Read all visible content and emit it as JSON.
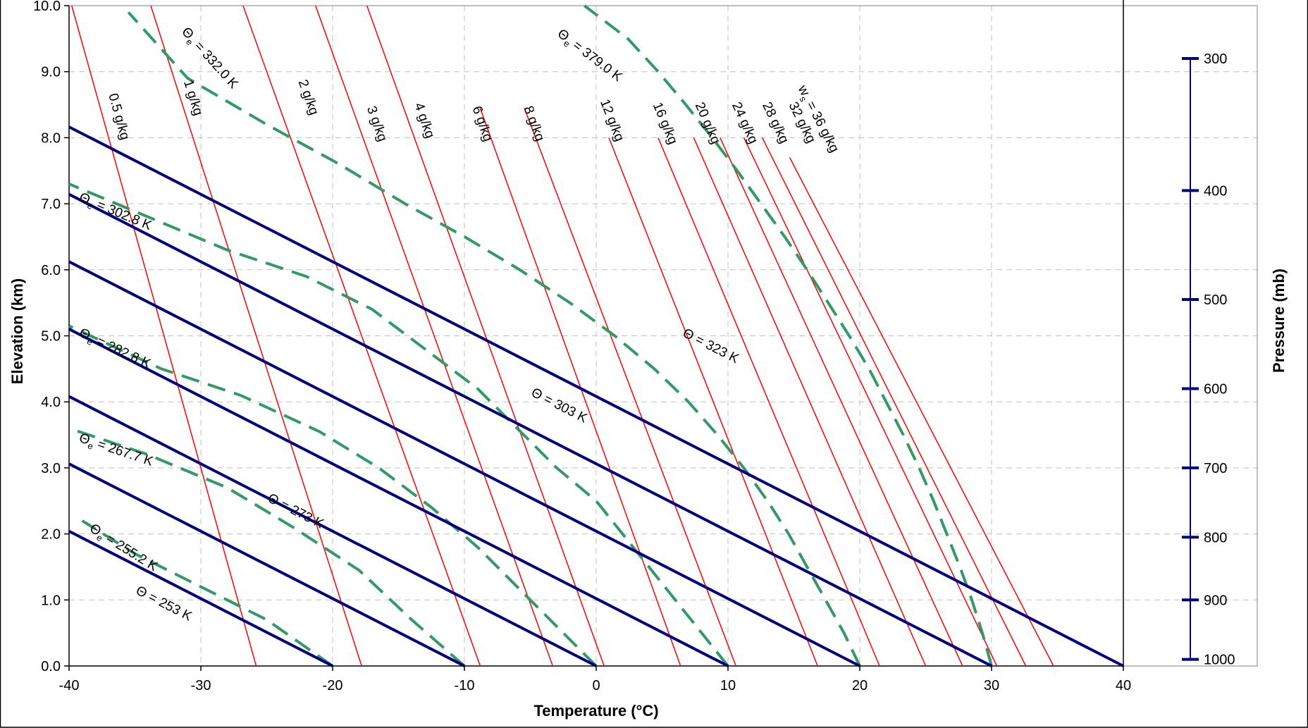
{
  "chart_data": {
    "type": "line",
    "xlabel": "Temperature (°C)",
    "ylabel": "Elevation (km)",
    "y2label": "Pressure (mb)",
    "xlim": [
      -40,
      40
    ],
    "ylim": [
      0,
      10
    ],
    "x_ticks": [
      "-40",
      "-30",
      "-20",
      "-10",
      "0",
      "10",
      "20",
      "30",
      "40"
    ],
    "y_ticks": [
      "0.0",
      "1.0",
      "2.0",
      "3.0",
      "4.0",
      "5.0",
      "6.0",
      "7.0",
      "8.0",
      "9.0",
      "10.0"
    ],
    "grid": true,
    "colors": {
      "dry_adiabat": "#00007f",
      "moist_adiabat": "#339966",
      "mixing_ratio": "#ff0000",
      "grid": "#c0c0c0"
    },
    "dry_adiabats": {
      "lapse_rate_c_per_km": 9.8,
      "surface_temperatures_c": [
        -20,
        -10,
        0,
        10,
        20,
        30,
        40
      ],
      "labels": [
        {
          "theta": "253",
          "text": "Θ = 253 K",
          "x": -35,
          "y": 1.1
        },
        {
          "theta": "273",
          "text": "Θ = 273 K",
          "x": -25,
          "y": 2.5
        },
        {
          "theta": "303",
          "text": "Θ = 303 K",
          "x": -5,
          "y": 4.1
        },
        {
          "theta": "323",
          "text": "Θ = 323 K",
          "x": 6.5,
          "y": 5.0
        }
      ]
    },
    "moist_adiabats": [
      {
        "label": "= 255.2 K",
        "label_x": -38.5,
        "label_y": 2.05,
        "points": [
          [
            -20,
            0
          ],
          [
            -25,
            0.7
          ],
          [
            -30,
            1.2
          ],
          [
            -35,
            1.7
          ],
          [
            -39,
            2.2
          ]
        ]
      },
      {
        "label": "= 267.7 K",
        "label_x": -39.3,
        "label_y": 3.4,
        "points": [
          [
            -10,
            0
          ],
          [
            -14,
            0.7
          ],
          [
            -18,
            1.45
          ],
          [
            -23,
            2.1
          ],
          [
            -28,
            2.7
          ],
          [
            -34,
            3.2
          ],
          [
            -40,
            3.6
          ]
        ]
      },
      {
        "label": "= 282.8 K",
        "label_x": -39.3,
        "label_y": 5.0,
        "points": [
          [
            0,
            0
          ],
          [
            -3,
            0.6
          ],
          [
            -6,
            1.2
          ],
          [
            -9,
            1.8
          ],
          [
            -12.5,
            2.4
          ],
          [
            -16.5,
            3.0
          ],
          [
            -21,
            3.55
          ],
          [
            -27,
            4.1
          ],
          [
            -33,
            4.5
          ],
          [
            -40,
            5.15
          ]
        ]
      },
      {
        "label": "= 302.8 K",
        "label_x": -39.3,
        "label_y": 7.05,
        "points": [
          [
            10,
            0
          ],
          [
            8,
            0.5
          ],
          [
            6,
            1.0
          ],
          [
            4,
            1.5
          ],
          [
            2,
            2.0
          ],
          [
            0,
            2.5
          ],
          [
            -3,
            3.0
          ],
          [
            -6,
            3.6
          ],
          [
            -9,
            4.2
          ],
          [
            -13,
            4.8
          ],
          [
            -17,
            5.4
          ],
          [
            -22,
            5.9
          ],
          [
            -28,
            6.3
          ],
          [
            -34,
            6.8
          ],
          [
            -40,
            7.3
          ]
        ]
      },
      {
        "label": "= 332.0 K",
        "label_x": -31.5,
        "label_y": 9.6,
        "points": [
          [
            20,
            0
          ],
          [
            18.8,
            0.5
          ],
          [
            17.4,
            1.0
          ],
          [
            16,
            1.5
          ],
          [
            14.6,
            2.0
          ],
          [
            13,
            2.5
          ],
          [
            11.2,
            3.0
          ],
          [
            9.2,
            3.5
          ],
          [
            7,
            4.0
          ],
          [
            4.4,
            4.5
          ],
          [
            1.4,
            5.0
          ],
          [
            -2,
            5.5
          ],
          [
            -5.8,
            6.0
          ],
          [
            -10,
            6.5
          ],
          [
            -14.5,
            7.0
          ],
          [
            -19.5,
            7.6
          ],
          [
            -25,
            8.2
          ],
          [
            -31,
            8.9
          ],
          [
            -35.5,
            9.9
          ]
        ]
      },
      {
        "label": "= 379.0 K",
        "label_x": -3,
        "label_y": 9.55,
        "points": [
          [
            30,
            0
          ],
          [
            29.3,
            0.5
          ],
          [
            28.5,
            1.0
          ],
          [
            27.6,
            1.5
          ],
          [
            26.6,
            2.0
          ],
          [
            25.6,
            2.5
          ],
          [
            24.5,
            3.0
          ],
          [
            23.3,
            3.5
          ],
          [
            22,
            4.0
          ],
          [
            20.7,
            4.5
          ],
          [
            19.2,
            5.0
          ],
          [
            17.6,
            5.5
          ],
          [
            16,
            6.0
          ],
          [
            14.3,
            6.5
          ],
          [
            12.5,
            7.0
          ],
          [
            10.7,
            7.5
          ],
          [
            8.8,
            8.0
          ],
          [
            6.8,
            8.5
          ],
          [
            4.7,
            9.0
          ],
          [
            2.4,
            9.5
          ],
          [
            -0.9,
            10.0
          ]
        ]
      }
    ],
    "mixing_ratio_lines": [
      {
        "label": "0.5 g/kg",
        "x0": -25.8,
        "slope": -1.4,
        "top": 10.0,
        "label_x": -37,
        "label_y": 8.65
      },
      {
        "label": "1 g/kg",
        "x0": -17.8,
        "slope": -1.6,
        "top": 10.0,
        "label_x": -31.3,
        "label_y": 8.85
      },
      {
        "label": "2 g/kg",
        "x0": -8.8,
        "slope": -1.8,
        "top": 10.0,
        "label_x": -22.6,
        "label_y": 8.85
      },
      {
        "label": "3 g/kg",
        "x0": -3.3,
        "slope": -1.8,
        "top": 10.0,
        "label_x": -17.4,
        "label_y": 8.45
      },
      {
        "label": "4 g/kg",
        "x0": 0.6,
        "slope": -1.8,
        "top": 10.0,
        "label_x": -13.8,
        "label_y": 8.5
      },
      {
        "label": "6 g/kg",
        "x0": 6.4,
        "slope": -1.8,
        "top": 8.45,
        "label_x": -9.4,
        "label_y": 8.45
      },
      {
        "label": "8 g/kg",
        "x0": 10.6,
        "slope": -1.9,
        "top": 8.45,
        "label_x": -5.5,
        "label_y": 8.45
      },
      {
        "label": "12 g/kg",
        "x0": 16.8,
        "slope": -1.98,
        "top": 8.0,
        "label_x": 0.3,
        "label_y": 8.55
      },
      {
        "label": "16 g/kg",
        "x0": 21.5,
        "slope": -2.1,
        "top": 8.0,
        "label_x": 4.3,
        "label_y": 8.5
      },
      {
        "label": "20 g/kg",
        "x0": 25.0,
        "slope": -2.2,
        "top": 8.0,
        "label_x": 7.5,
        "label_y": 8.5
      },
      {
        "label": "24 g/kg",
        "x0": 27.8,
        "slope": -2.3,
        "top": 8.0,
        "label_x": 10.3,
        "label_y": 8.5
      },
      {
        "label": "28 g/kg",
        "x0": 30.4,
        "slope": -2.4,
        "top": 8.0,
        "label_x": 12.6,
        "label_y": 8.5
      },
      {
        "label": "32 g/kg",
        "x0": 32.6,
        "slope": -2.5,
        "top": 8.0,
        "label_x": 14.6,
        "label_y": 8.5
      },
      {
        "label": "= 36 g/kg",
        "x0": 34.7,
        "slope": -2.6,
        "top": 7.7,
        "label_x": 15.3,
        "label_y": 8.75
      }
    ],
    "pressure_ticks": [
      {
        "label": "300",
        "km": 9.2
      },
      {
        "label": "400",
        "km": 7.2
      },
      {
        "label": "500",
        "km": 5.55
      },
      {
        "label": "600",
        "km": 4.2
      },
      {
        "label": "700",
        "km": 3.0
      },
      {
        "label": "800",
        "km": 1.95
      },
      {
        "label": "900",
        "km": 1.0
      },
      {
        "label": "1000",
        "km": 0.1
      }
    ],
    "symbols": {
      "theta": "Θ",
      "theta_e_sub": "e",
      "ws": "w",
      "ws_sub": "s"
    }
  }
}
